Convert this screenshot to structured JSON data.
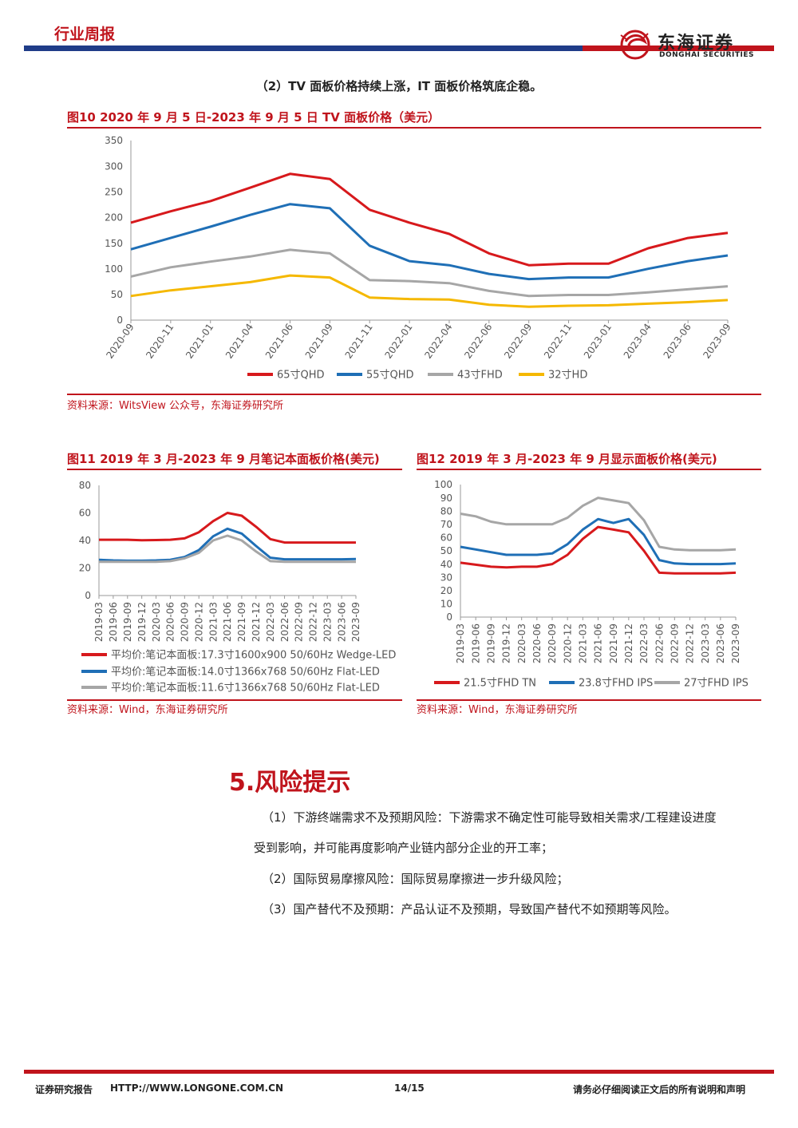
{
  "header": {
    "title": "行业周报",
    "logo_cn": "东海证券",
    "logo_en": "DONGHAI SECURITIES"
  },
  "subhead": "（2）TV 面板价格持续上涨，IT 面板价格筑底企稳。",
  "figure10": {
    "title": "图10  2020 年 9 月 5 日-2023 年 9 月 5 日 TV 面板价格（美元）",
    "source": "资料来源：WitsView 公众号，东海证券研究所"
  },
  "figure11": {
    "title": "图11  2019 年 3 月-2023 年 9 月笔记本面板价格(美元)",
    "source": "资料来源：Wind，东海证券研究所"
  },
  "figure12": {
    "title": "图12  2019 年 3 月-2023 年 9 月显示面板价格(美元)",
    "source": "资料来源：Wind，东海证券研究所"
  },
  "section": {
    "title": "5.风险提示",
    "p1_line1": "（1）下游终端需求不及预期风险：下游需求不确定性可能导致相关需求/工程建设进度",
    "p1_line2": "受到影响，并可能再度影响产业链内部分企业的开工率；",
    "p2": "（2）国际贸易摩擦风险：国际贸易摩擦进一步升级风险；",
    "p3": "（3）国产替代不及预期：产品认证不及预期，导致国产替代不如预期等风险。"
  },
  "footer": {
    "left": "证券研究报告",
    "url": "HTTP://WWW.LONGONE.COM.CN",
    "page": "14/15",
    "right": "请务必仔细阅读正文后的所有说明和声明"
  },
  "chart_data": [
    {
      "type": "line",
      "title": "",
      "x": [
        "2020-09",
        "2020-11",
        "2021-01",
        "2021-04",
        "2021-06",
        "2021-09",
        "2021-11",
        "2022-01",
        "2022-04",
        "2022-06",
        "2022-09",
        "2022-11",
        "2023-01",
        "2023-04",
        "2023-06",
        "2023-09"
      ],
      "ylim": [
        0,
        350
      ],
      "yticks": [
        0,
        50,
        100,
        150,
        200,
        250,
        300,
        350
      ],
      "legend": "bottom",
      "series": [
        {
          "name": "65寸QHD",
          "color": "#d7191c",
          "values": [
            190,
            212,
            232,
            258,
            285,
            275,
            215,
            190,
            168,
            130,
            107,
            110,
            110,
            140,
            160,
            170
          ]
        },
        {
          "name": "55寸QHD",
          "color": "#1f6fb6",
          "values": [
            138,
            160,
            182,
            205,
            226,
            218,
            145,
            115,
            107,
            90,
            80,
            83,
            83,
            100,
            115,
            126
          ]
        },
        {
          "name": "43寸FHD",
          "color": "#a6a6a6",
          "values": [
            85,
            103,
            114,
            124,
            137,
            130,
            78,
            76,
            72,
            57,
            47,
            49,
            49,
            54,
            60,
            66
          ]
        },
        {
          "name": "32寸HD",
          "color": "#f5b800",
          "values": [
            47,
            58,
            66,
            74,
            87,
            83,
            44,
            41,
            40,
            30,
            26,
            28,
            29,
            32,
            35,
            39
          ]
        }
      ]
    },
    {
      "type": "line",
      "title": "",
      "x": [
        "2019-03",
        "2019-06",
        "2019-09",
        "2019-12",
        "2020-03",
        "2020-06",
        "2020-09",
        "2020-12",
        "2021-03",
        "2021-06",
        "2021-09",
        "2021-12",
        "2022-03",
        "2022-06",
        "2022-09",
        "2022-12",
        "2023-03",
        "2023-06",
        "2023-09"
      ],
      "ylim": [
        0,
        80
      ],
      "yticks": [
        0,
        20,
        40,
        60,
        80
      ],
      "legend": "bottom",
      "series": [
        {
          "name": "平均价:笔记本面板:17.3寸1600x900 50/60Hz Wedge-LED",
          "color": "#d7191c",
          "values": [
            40.5,
            40.5,
            40.5,
            40.2,
            40.3,
            40.5,
            41.5,
            46,
            54,
            60,
            58,
            50,
            41,
            38.5,
            38.5,
            38.5,
            38.5,
            38.5,
            38.5
          ]
        },
        {
          "name": "平均价:笔记本面板:14.0寸1366x768 50/60Hz Flat-LED",
          "color": "#1f6fb6",
          "values": [
            26,
            25.5,
            25.3,
            25.3,
            25.5,
            26,
            28,
            33,
            43,
            48.5,
            45,
            36,
            27.5,
            26.3,
            26.3,
            26.3,
            26.3,
            26.3,
            26.5
          ]
        },
        {
          "name": "平均价:笔记本面板:11.6寸1366x768 50/60Hz Flat-LED",
          "color": "#a6a6a6",
          "values": [
            24.5,
            24.5,
            24.5,
            24.5,
            24.5,
            25,
            27,
            31,
            40,
            43.5,
            40,
            32,
            25,
            24.5,
            24.5,
            24.5,
            24.5,
            24.5,
            24.5
          ]
        }
      ]
    },
    {
      "type": "line",
      "title": "",
      "x": [
        "2019-03",
        "2019-06",
        "2019-09",
        "2019-12",
        "2020-03",
        "2020-06",
        "2020-09",
        "2020-12",
        "2021-03",
        "2021-06",
        "2021-09",
        "2021-12",
        "2022-03",
        "2022-06",
        "2022-09",
        "2022-12",
        "2023-03",
        "2023-06",
        "2023-09"
      ],
      "ylim": [
        0,
        100
      ],
      "yticks": [
        0,
        10,
        20,
        30,
        40,
        50,
        60,
        70,
        80,
        90,
        100
      ],
      "legend": "bottom",
      "series": [
        {
          "name": "21.5寸FHD TN",
          "color": "#d7191c",
          "values": [
            41,
            39.5,
            38,
            37.5,
            38,
            38,
            40,
            47,
            59,
            68,
            66,
            64,
            50,
            33.5,
            33,
            33,
            33,
            33,
            33.5
          ]
        },
        {
          "name": "23.8寸FHD IPS",
          "color": "#1f6fb6",
          "values": [
            53,
            51,
            49,
            47,
            47,
            47,
            48,
            55,
            66,
            74,
            71,
            74,
            62,
            43,
            40.5,
            40,
            40,
            40,
            40.5
          ]
        },
        {
          "name": "27寸FHD IPS",
          "color": "#a6a6a6",
          "values": [
            78,
            76,
            72,
            70,
            70,
            70,
            70,
            75,
            84,
            90,
            88,
            86,
            73,
            53,
            51,
            50.5,
            50.5,
            50.5,
            51
          ]
        }
      ]
    }
  ]
}
